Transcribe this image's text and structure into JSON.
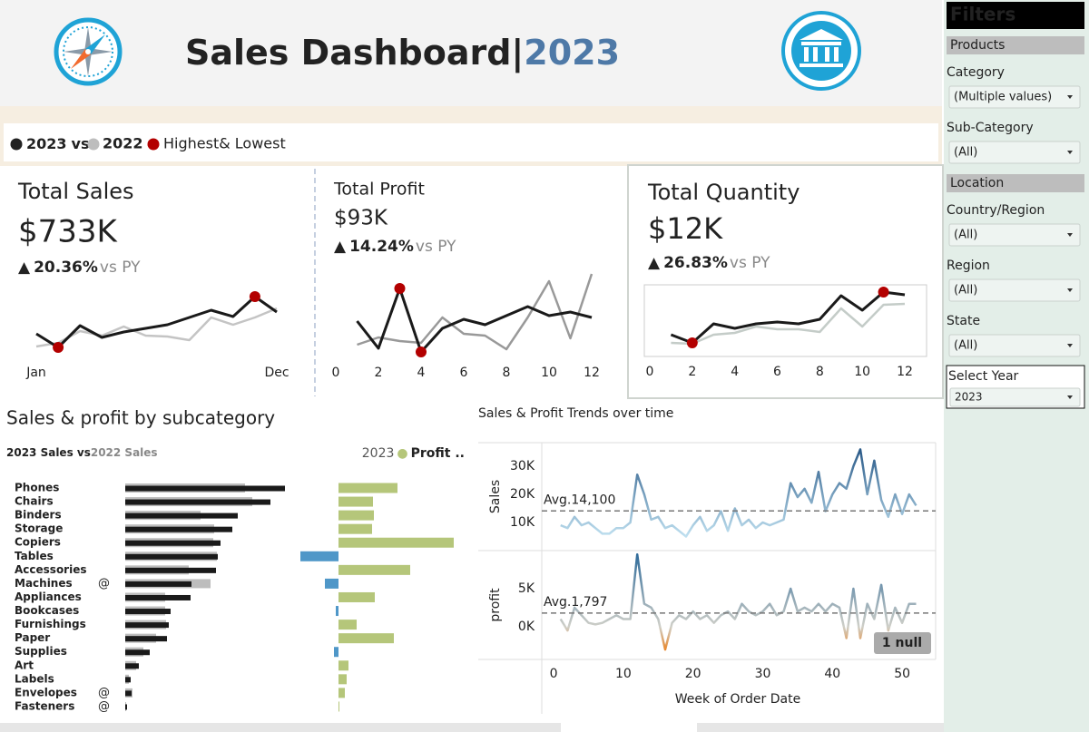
{
  "header": {
    "title": "Sales Dashboard|",
    "year": "2023"
  },
  "legend": {
    "current": "2023",
    "vs": "vs",
    "previous": "2022",
    "highlight": "Highest& Lowest",
    "current_color": "#222222",
    "previous_color": "#bdbdbd",
    "highlight_color": "#b30000"
  },
  "filters": {
    "title": "Filters",
    "sections": [
      {
        "name": "Products",
        "fields": [
          {
            "label": "Category",
            "value": "(Multiple values)"
          },
          {
            "label": "Sub-Category",
            "value": "(All)"
          }
        ]
      },
      {
        "name": "Location",
        "fields": [
          {
            "label": "Country/Region",
            "value": "(All)"
          },
          {
            "label": "Region",
            "value": "(All)"
          },
          {
            "label": "State",
            "value": "(All)"
          }
        ]
      }
    ],
    "year": {
      "label": "Select Year",
      "value": "2023"
    }
  },
  "chart_data": [
    {
      "type": "sparkline",
      "title": "Total Sales",
      "value": "$733K",
      "arrow": "▲",
      "change": "20.36%",
      "change_suffix": "vs  PY",
      "categories": [
        "Jan",
        null,
        null,
        null,
        null,
        null,
        null,
        null,
        null,
        null,
        null,
        "Dec"
      ],
      "series": [
        {
          "color": "#1a1a1a",
          "values": [
            56.5,
            43,
            64.6,
            52.9,
            58.3,
            61.9,
            65.5,
            72.7,
            79.9,
            73.6,
            93.4,
            78.1
          ]
        },
        {
          "color": "#c4c4c4",
          "values": [
            43.9,
            47.5,
            59.2,
            54.7,
            63.7,
            54.7,
            53.8,
            50.2,
            72.7,
            65.5,
            72.7,
            81.7
          ]
        }
      ],
      "highlight_color": "#b30000"
    },
    {
      "type": "sparkline",
      "title": "Total Profit",
      "value": "$93K",
      "arrow": "▲",
      "change": "14.24%",
      "change_suffix": "vs PY",
      "x": [
        1,
        2,
        3,
        4,
        5,
        6,
        7,
        8,
        9,
        10,
        11,
        12
      ],
      "xlim": [
        0,
        12.55
      ],
      "xticks": [
        0,
        2,
        4,
        6,
        8,
        10,
        12
      ],
      "series": [
        {
          "color": "#1a1a1a",
          "values": [
            7.2,
            1.2,
            14.4,
            0.4,
            5.6,
            7.6,
            6.4,
            8.4,
            10.4,
            8.4,
            9.2,
            8.0
          ]
        },
        {
          "color": "#999999",
          "values": [
            2,
            3.6,
            2.8,
            2.4,
            8,
            4.4,
            4,
            1,
            8,
            16,
            3.4,
            17.6
          ]
        }
      ],
      "highlight_color": "#b30000"
    },
    {
      "type": "sparkline",
      "title": "Total Quantity",
      "value": "$12K",
      "arrow": "▲",
      "change": "26.83%",
      "change_suffix": "vs PY",
      "frame": true,
      "x": [
        1,
        2,
        3,
        4,
        5,
        6,
        7,
        8,
        9,
        10,
        11,
        12
      ],
      "xlim": [
        -0.25,
        13.05
      ],
      "xticks": [
        0,
        2,
        4,
        6,
        8,
        10,
        12
      ],
      "series": [
        {
          "color": "#1a1a1a",
          "values": [
            620,
            440,
            860,
            760,
            860,
            900,
            860,
            960,
            1480,
            1160,
            1560,
            1500
          ]
        },
        {
          "color": "#c4ccc8",
          "values": [
            440,
            420,
            620,
            660,
            800,
            740,
            740,
            680,
            1200,
            800,
            1280,
            1300
          ]
        }
      ],
      "highlight_color": "#b30000"
    },
    {
      "type": "bar-combo",
      "title": "Sales & profit by subcategory",
      "sales_title": [
        "2023 Sales vs",
        "2022 Sales"
      ],
      "profit_legend_year": "2023",
      "profit_legend": "Profit ..",
      "categories": [
        "Phones",
        "Chairs",
        "Binders",
        "Storage",
        "Copiers",
        "Tables",
        "Accessories",
        "Machines",
        "Appliances",
        "Bookcases",
        "Furnishings",
        "Paper",
        "Supplies",
        "Art",
        "Labels",
        "Envelopes",
        "Fasteners"
      ],
      "alerts": [
        null,
        null,
        null,
        null,
        null,
        null,
        null,
        "@",
        null,
        null,
        null,
        null,
        null,
        null,
        null,
        "@",
        "@"
      ],
      "alert_color": "#f0a030",
      "series": [
        {
          "color": "#1a1a1a",
          "values": [
            105.6,
            96,
            74.4,
            70.8,
            63,
            61.2,
            60,
            43.8,
            43.2,
            30,
            28.8,
            27.6,
            16.2,
            9,
            3.6,
            4.2,
            1.2
          ]
        },
        {
          "color": "#bdbdbd",
          "values": [
            79.2,
            84,
            49.8,
            58.8,
            58.2,
            60.6,
            42,
            56.4,
            26.4,
            26.4,
            27,
            20.4,
            12,
            7.2,
            2.4,
            4.8,
            0.6
          ]
        },
        {
          "positive_color": "#b5c67a",
          "negative_color": "#4f97c8",
          "values": [
            13,
            7.6,
            7.8,
            7.4,
            25.4,
            -8.4,
            15.8,
            -3,
            8,
            -0.6,
            4,
            12.2,
            -1,
            2.2,
            1.8,
            1.4,
            0.2
          ]
        }
      ]
    },
    {
      "type": "dual-line",
      "title": "Sales & Profit Trends over time",
      "x_label": "Week of Order Date",
      "x": [
        1,
        2,
        3,
        4,
        5,
        6,
        7,
        8,
        9,
        10,
        11,
        12,
        13,
        14,
        15,
        16,
        17,
        18,
        19,
        20,
        21,
        22,
        23,
        24,
        25,
        26,
        27,
        28,
        29,
        30,
        31,
        32,
        33,
        34,
        35,
        36,
        37,
        38,
        39,
        40,
        41,
        42,
        43,
        44,
        45,
        46,
        47,
        48,
        49,
        50,
        51,
        52
      ],
      "xlim": [
        -1.7,
        54.8
      ],
      "xticks": [
        0,
        10,
        20,
        30,
        40,
        50
      ],
      "panels": [
        {
          "y_label": "Sales",
          "ylim": [
            0,
            38.4
          ],
          "yticks": [
            {
              "value": 10,
              "label": "10K"
            },
            {
              "value": 20,
              "label": "20K"
            },
            {
              "value": 30,
              "label": "30K"
            }
          ],
          "average": 14.1,
          "average_label": "Avg.14,100",
          "colors": [
            "#bfe0f0",
            "#2a5a88"
          ],
          "values": [
            9,
            8,
            12,
            9,
            10,
            8,
            6,
            6,
            8,
            8,
            10,
            27,
            20,
            11,
            12,
            8,
            9,
            7,
            5,
            9,
            12,
            7,
            9,
            14,
            7,
            15,
            9,
            11,
            8,
            10,
            9,
            10,
            11,
            24,
            19,
            22,
            17,
            28,
            14,
            20,
            24,
            22,
            30,
            36,
            20,
            32,
            18,
            12,
            20,
            13,
            20,
            16
          ]
        },
        {
          "y_label": "profit",
          "ylim": [
            -4.3,
            10
          ],
          "yticks": [
            {
              "value": 0,
              "label": "0K"
            },
            {
              "value": 5,
              "label": "5K"
            }
          ],
          "average": 1.797,
          "average_label": "Avg.1,797",
          "colors": [
            "#e8892f",
            "#cfcfc8",
            "#2f6b9a"
          ],
          "null_label": "1 null",
          "values": [
            1,
            -0.5,
            2.5,
            1.5,
            0.5,
            0.3,
            0.5,
            1,
            1.5,
            1,
            1,
            9.5,
            3,
            2.5,
            1,
            -3,
            0.5,
            1.5,
            1,
            2,
            1,
            1.5,
            0.5,
            1.5,
            2,
            1,
            3,
            2,
            1.5,
            2,
            3,
            1.5,
            2,
            5,
            2,
            2.5,
            2,
            3,
            2,
            3,
            2.5,
            -1.5,
            5,
            -1.5,
            3,
            1,
            5.5,
            -0.5,
            2.5,
            0.5,
            3,
            3
          ]
        }
      ]
    }
  ]
}
